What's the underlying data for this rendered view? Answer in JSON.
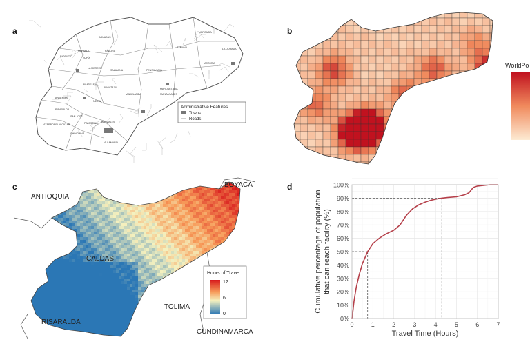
{
  "panels": {
    "a": {
      "label": "a",
      "legend_title": "Administrative Features",
      "legend_items": [
        "Towns",
        "Roads"
      ],
      "municipalities": [
        "AGUADAS",
        "PÁCORA",
        "SAMANÁ",
        "NORCASIA",
        "LA DORADA",
        "MARMATO",
        "SUPÍA",
        "RIOSUCIO",
        "LA MERCED",
        "SALAMINA",
        "PENSILVANIA",
        "VICTORIA",
        "FILADELFIA",
        "ARANZAZU",
        "MARQUETALIA",
        "MANZANARES",
        "MARULANDA",
        "ANSERMA",
        "NEIRA",
        "RISARALDA",
        "SAN JOSÉ",
        "BELALCÁZAR",
        "VITERBO",
        "PALESTINA",
        "MANIZALES",
        "CHINCHINÁ",
        "VILLAMARÍA"
      ]
    },
    "b": {
      "label": "b",
      "legend_title": "WorldPo"
    },
    "c": {
      "label": "c",
      "legend_title": "Hours of Travel",
      "legend_ticks": [
        "12",
        "6",
        "0"
      ],
      "region_labels": [
        "ANTIOQUIA",
        "BOYACÁ",
        "CALDAS",
        "TOLIMA",
        "RISARALDA",
        "CUNDINAMARCA"
      ]
    },
    "d": {
      "label": "d"
    }
  },
  "chart_data": {
    "type": "line",
    "xlabel": "Travel Time (Hours)",
    "ylabel": "Cumulative percentage of population that can reach facility (%)",
    "ylabel_lines": [
      "Cumulative percentage of population",
      "that can reach facility (%)"
    ],
    "xlim": [
      0,
      7
    ],
    "ylim": [
      0,
      100
    ],
    "x_ticks": [
      "0",
      "1",
      "2",
      "3",
      "4",
      "5",
      "6",
      "7"
    ],
    "y_ticks": [
      "0%",
      "10%",
      "20%",
      "30%",
      "40%",
      "50%",
      "60%",
      "70%",
      "80%",
      "90%",
      "100%"
    ],
    "grid": true,
    "series": [
      {
        "color": "#b5404a",
        "x": [
          0,
          0.05,
          0.1,
          0.2,
          0.35,
          0.5,
          0.75,
          1.0,
          1.3,
          1.6,
          2.0,
          2.3,
          2.6,
          2.9,
          3.2,
          3.5,
          3.8,
          4.1,
          4.3,
          4.6,
          5.0,
          5.4,
          5.6,
          5.8,
          6.0,
          6.3,
          6.6,
          7.0
        ],
        "y": [
          0,
          6,
          13,
          23,
          33,
          41,
          50,
          56,
          60,
          63,
          66,
          70,
          77,
          82,
          85,
          87,
          88.5,
          89.5,
          90,
          90.5,
          91,
          92.5,
          94,
          98,
          99,
          99.5,
          100,
          100
        ]
      }
    ],
    "reference_lines": [
      {
        "x": 0.75,
        "y": 50
      },
      {
        "x": 4.3,
        "y": 90
      }
    ]
  },
  "colors": {
    "curve": "#b5404a",
    "heat_low": "#fdebd3",
    "heat_high": "#c1121f",
    "travel_low": "#2b77b5",
    "travel_mid": "#f4f1bf",
    "travel_high": "#d7191c"
  }
}
